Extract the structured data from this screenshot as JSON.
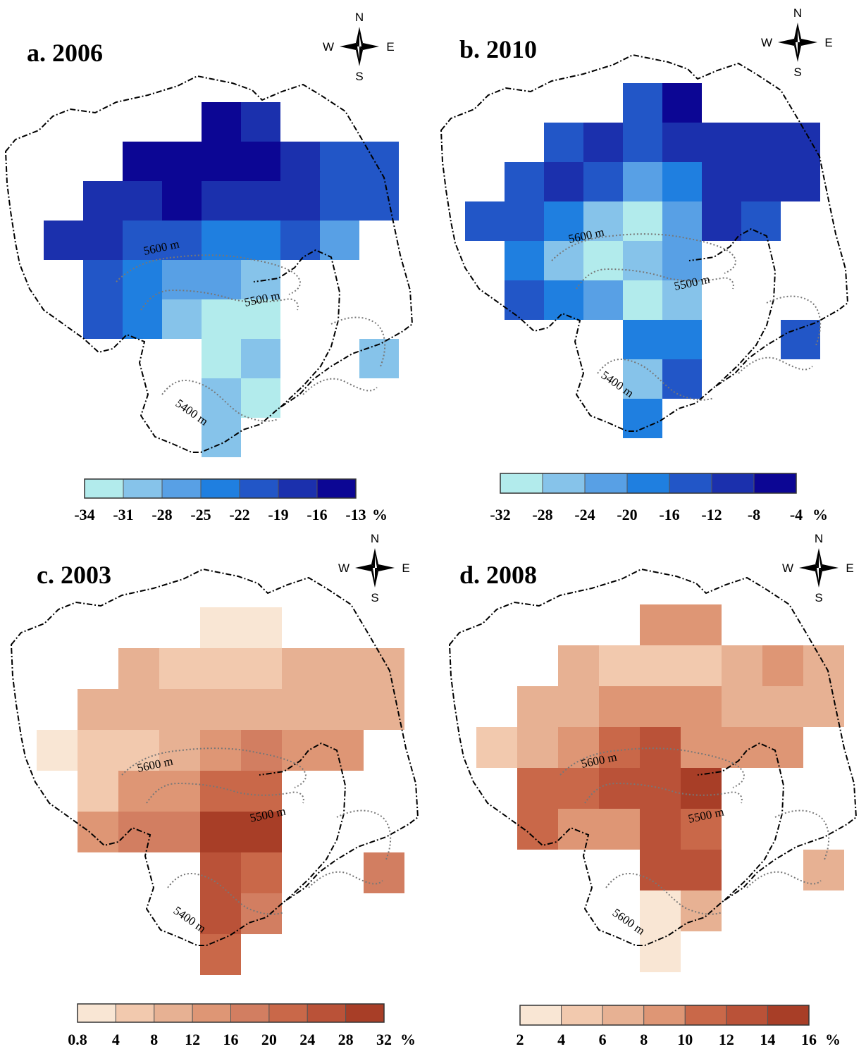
{
  "panels": [
    {
      "title": "a. 2006",
      "compass": {
        "n": "N",
        "s": "S",
        "e": "E",
        "w": "W"
      },
      "color_scale": {
        "colors": [
          "#b2ebec",
          "#86c3ea",
          "#58a0e5",
          "#1f7fe0",
          "#2256c7",
          "#1b30ad",
          "#0c0694"
        ],
        "ticks": [
          "-34",
          "-31",
          "-28",
          "-25",
          "-22",
          "-19",
          "-16",
          "-13"
        ],
        "unit": "%"
      },
      "contour_labels": [
        "5600 m",
        "5500 m",
        "5400 m"
      ]
    },
    {
      "title": "b. 2010",
      "compass": {
        "n": "N",
        "s": "S",
        "e": "E",
        "w": "W"
      },
      "color_scale": {
        "colors": [
          "#b2ebec",
          "#86c3ea",
          "#58a0e5",
          "#1f7fe0",
          "#2256c7",
          "#1b30ad",
          "#0c0694"
        ],
        "ticks": [
          "-32",
          "-28",
          "-24",
          "-20",
          "-16",
          "-12",
          "-8",
          "-4"
        ],
        "unit": "%"
      },
      "contour_labels": [
        "5600 m",
        "5500 m",
        "5400 m"
      ]
    },
    {
      "title": "c. 2003",
      "compass": {
        "n": "N",
        "s": "S",
        "e": "E",
        "w": "W"
      },
      "color_scale": {
        "colors": [
          "#f9e6d4",
          "#f2c9ae",
          "#e7b193",
          "#de9675",
          "#d27e61",
          "#c96849",
          "#ba5238",
          "#a83e27"
        ],
        "ticks": [
          "0.8",
          "4",
          "8",
          "12",
          "16",
          "20",
          "24",
          "28",
          "32"
        ],
        "unit": "%"
      },
      "contour_labels": [
        "5600 m",
        "5500 m",
        "5400 m"
      ]
    },
    {
      "title": "d. 2008",
      "compass": {
        "n": "N",
        "s": "S",
        "e": "E",
        "w": "W"
      },
      "color_scale": {
        "colors": [
          "#f9e6d4",
          "#f2c9ae",
          "#e7b193",
          "#de9675",
          "#c96849",
          "#ba5238",
          "#a83e27"
        ],
        "ticks": [
          "2",
          "4",
          "6",
          "8",
          "10",
          "12",
          "14",
          "16"
        ],
        "unit": "%"
      },
      "contour_labels": [
        "5600 m",
        "5500 m",
        "5600 m"
      ]
    }
  ]
}
